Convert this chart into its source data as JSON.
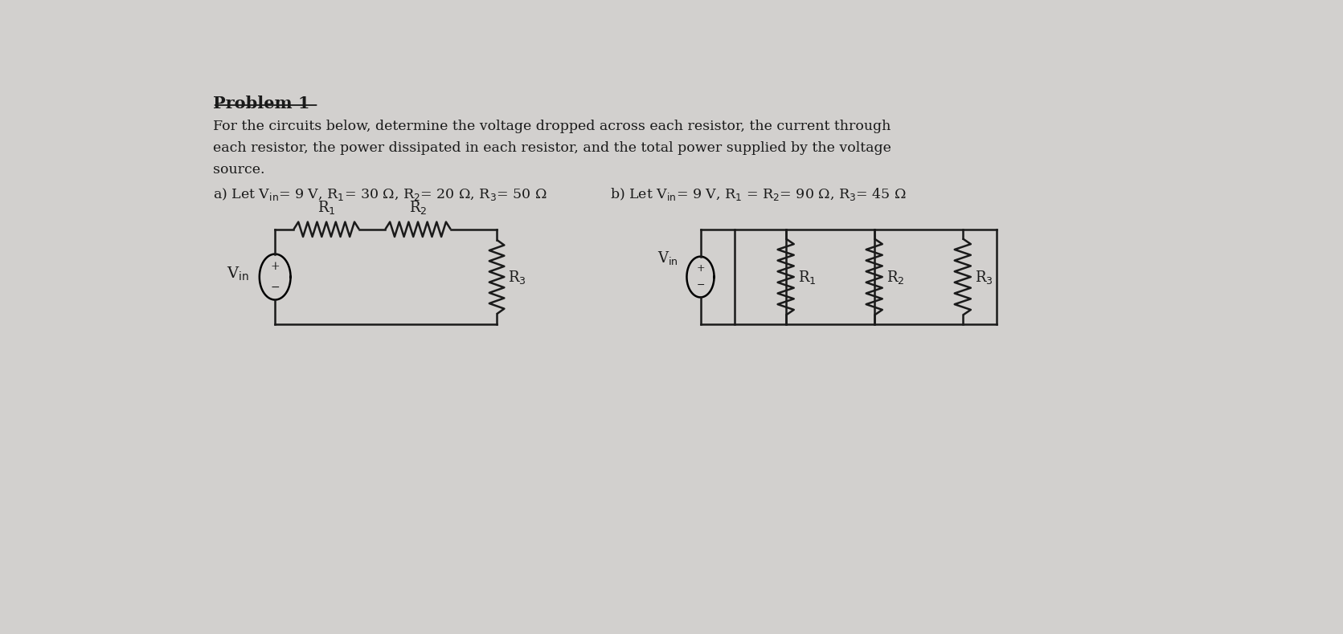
{
  "background_color": "#d2d0ce",
  "text_color": "#1a1a1a",
  "title": "Problem 1",
  "line1": "For the circuits below, determine the voltage dropped across each resistor, the current through",
  "line2": "each resistor, the power dissipated in each resistor, and the total power supplied by the voltage",
  "line3": "source.",
  "part_a": "a) Let V$_{\\rm in}$= 9 V, R$_1$= 30 Ω, R$_2$= 20 Ω, R$_3$= 50 Ω",
  "part_b": "b) Let V$_{\\rm in}$= 9 V, R$_1$ = R$_2$= 90 Ω, R$_3$= 45 Ω",
  "lw": 1.8
}
